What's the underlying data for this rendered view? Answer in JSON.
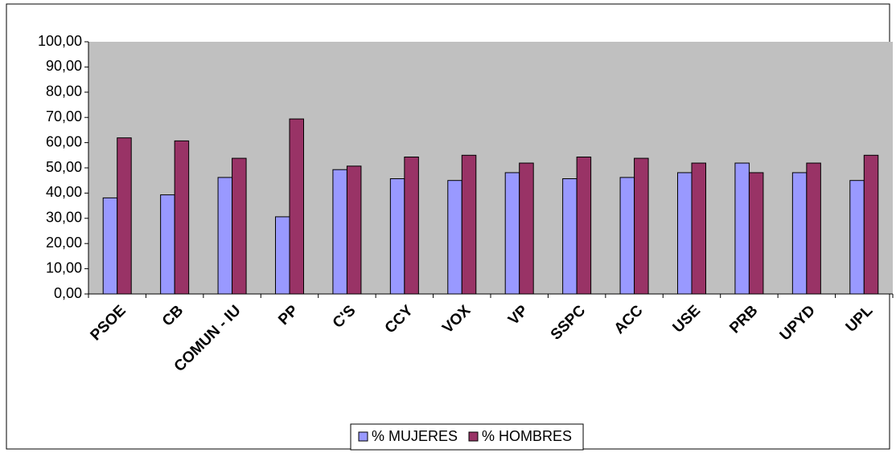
{
  "chart_data": {
    "type": "bar",
    "categories": [
      "PSOE",
      "CB",
      "COMUN - IU",
      "PP",
      "C'S",
      "CCY",
      "VOX",
      "VP",
      "SSPC",
      "ACC",
      "USE",
      "PRB",
      "UPYD",
      "UPL"
    ],
    "series": [
      {
        "name": "% MUJERES",
        "color": "#9999ff",
        "values": [
          38.1,
          39.3,
          46.2,
          30.6,
          49.3,
          45.7,
          45.0,
          48.1,
          45.7,
          46.2,
          48.1,
          51.9,
          48.1,
          45.0
        ]
      },
      {
        "name": "% HOMBRES",
        "color": "#993366",
        "values": [
          61.9,
          60.7,
          53.8,
          69.4,
          50.7,
          54.3,
          55.0,
          51.9,
          54.3,
          53.8,
          51.9,
          48.1,
          51.9,
          55.0
        ]
      }
    ],
    "ylim": [
      0,
      100
    ],
    "yticks": [
      {
        "value": 0,
        "label": "0,00"
      },
      {
        "value": 10,
        "label": "10,00"
      },
      {
        "value": 20,
        "label": "20,00"
      },
      {
        "value": 30,
        "label": "30,00"
      },
      {
        "value": 40,
        "label": "40,00"
      },
      {
        "value": 50,
        "label": "50,00"
      },
      {
        "value": 60,
        "label": "60,00"
      },
      {
        "value": 70,
        "label": "70,00"
      },
      {
        "value": 80,
        "label": "80,00"
      },
      {
        "value": 90,
        "label": "90,00"
      },
      {
        "value": 100,
        "label": "100,00"
      }
    ],
    "legend": "bottom"
  }
}
